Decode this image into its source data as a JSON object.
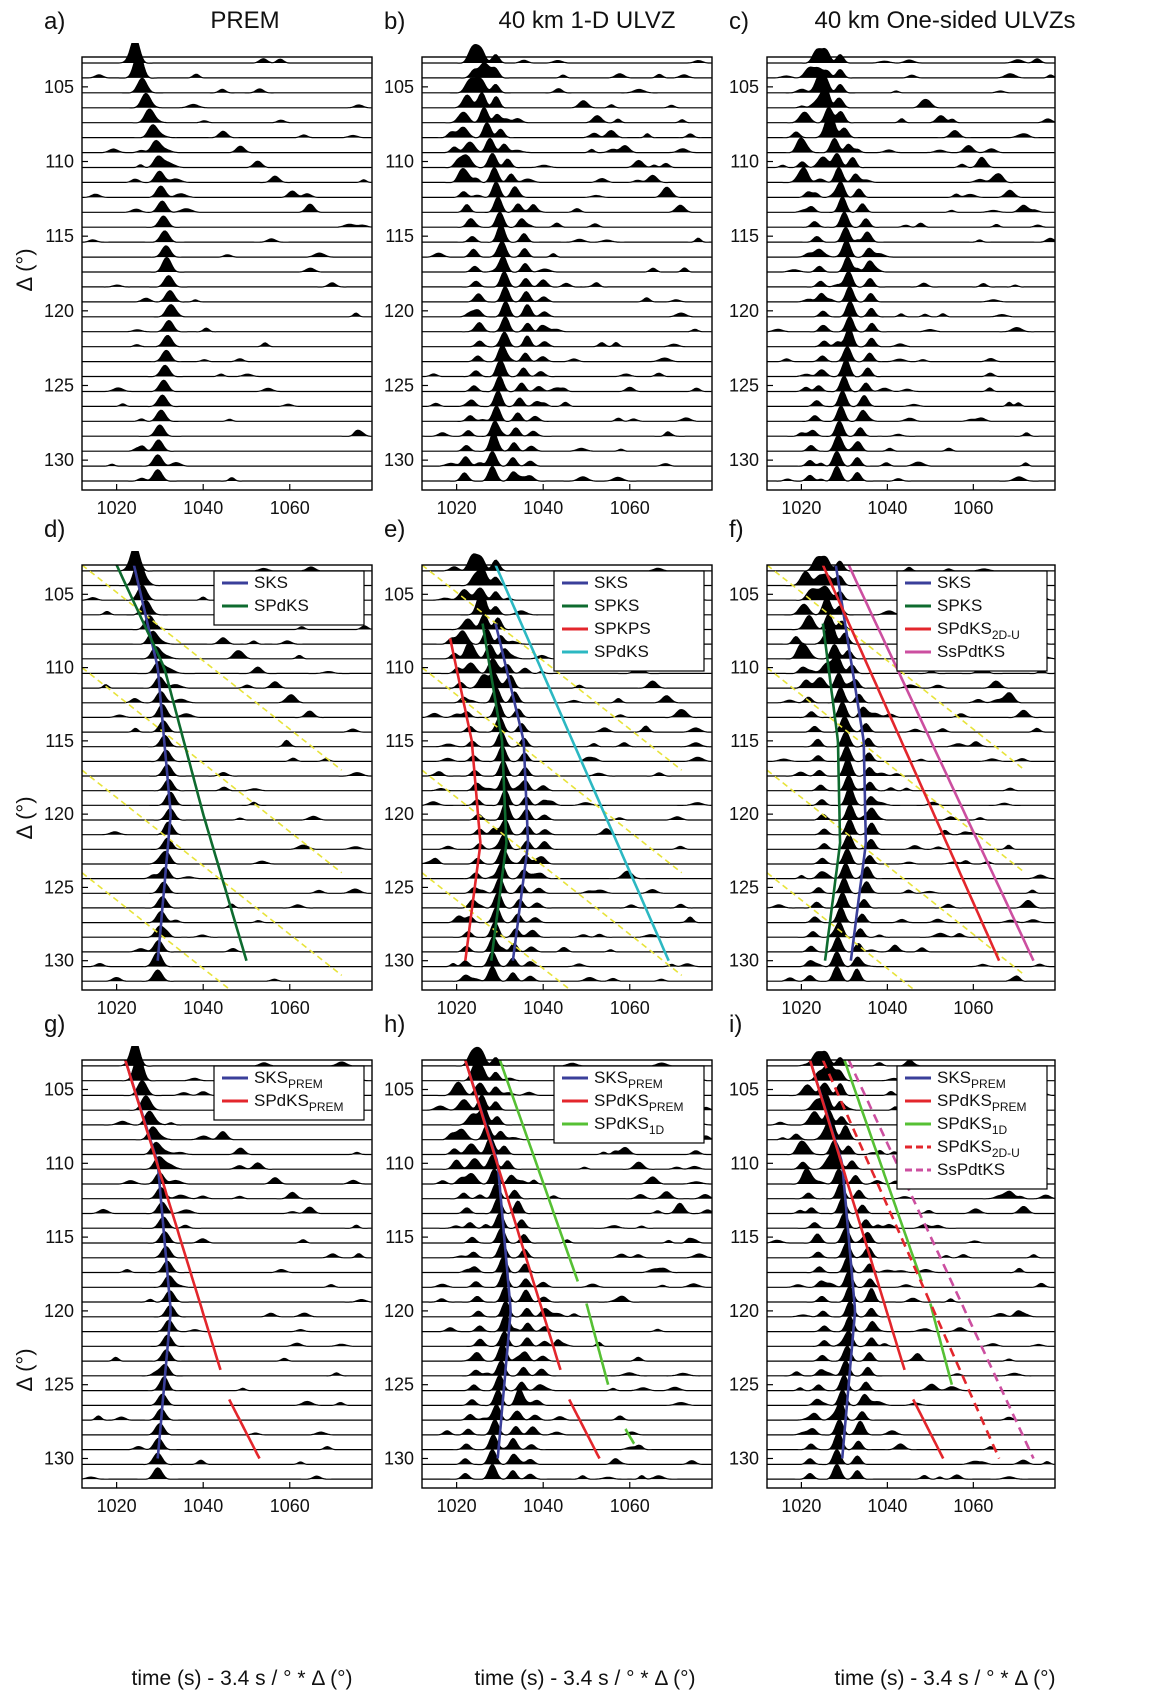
{
  "figure": {
    "column_titles": [
      "PREM",
      "40 km 1-D ULVZ",
      "40 km One-sided ULVZs"
    ],
    "ylabel": "Δ (°)",
    "xlabel": "time (s) - 3.4 s / ° * Δ (°)",
    "colors": {
      "SKS": "#3a3f9a",
      "SPdKS": "#0e6b2f",
      "SPKS": "#0e6b2f",
      "SPKPS": "#e3262c",
      "SPdKS_cyan": "#2cb8c2",
      "SPdKS_2DU": "#e3262c",
      "SsPdtKS": "#cc4fa0",
      "SKS_PREM": "#3a3f9a",
      "SPdKS_PREM": "#e3262c",
      "SPdKS_1D": "#56c034",
      "guide_dashed": "#e7e33a"
    }
  },
  "chart_data": [
    {
      "panel": "a)",
      "type": "line",
      "title": "PREM",
      "xlim": [
        1012,
        1079
      ],
      "ylim": [
        103,
        132
      ],
      "xticks": [
        1020,
        1040,
        1060
      ],
      "yticks": [
        105,
        110,
        115,
        120,
        125,
        130
      ],
      "legend": []
    },
    {
      "panel": "b)",
      "type": "line",
      "title": "40 km 1-D ULVZ",
      "xlim": [
        1012,
        1079
      ],
      "ylim": [
        103,
        132
      ],
      "xticks": [
        1020,
        1040,
        1060
      ],
      "yticks": [
        105,
        110,
        115,
        120,
        125,
        130
      ],
      "legend": []
    },
    {
      "panel": "c)",
      "type": "line",
      "title": "40 km One-sided ULVZs",
      "xlim": [
        1012,
        1079
      ],
      "ylim": [
        103,
        132
      ],
      "xticks": [
        1020,
        1040,
        1060
      ],
      "yticks": [
        105,
        110,
        115,
        120,
        125,
        130
      ],
      "legend": []
    },
    {
      "panel": "d)",
      "type": "line",
      "xlim": [
        1012,
        1079
      ],
      "ylim": [
        103,
        132
      ],
      "xticks": [
        1020,
        1040,
        1060
      ],
      "yticks": [
        105,
        110,
        115,
        120,
        125,
        130
      ],
      "legend": [
        {
          "label": "SKS",
          "sub": "",
          "color": "#3a3f9a",
          "dash": false
        },
        {
          "label": "SPdKS",
          "sub": "",
          "color": "#0e6b2f",
          "dash": false
        }
      ]
    },
    {
      "panel": "e)",
      "type": "line",
      "xlim": [
        1012,
        1079
      ],
      "ylim": [
        103,
        132
      ],
      "xticks": [
        1020,
        1040,
        1060
      ],
      "yticks": [
        105,
        110,
        115,
        120,
        125,
        130
      ],
      "legend": [
        {
          "label": "SKS",
          "sub": "",
          "color": "#3a3f9a",
          "dash": false
        },
        {
          "label": "SPKS",
          "sub": "",
          "color": "#0e6b2f",
          "dash": false
        },
        {
          "label": "SPKPS",
          "sub": "",
          "color": "#e3262c",
          "dash": false
        },
        {
          "label": "SPdKS",
          "sub": "",
          "color": "#2cb8c2",
          "dash": false
        }
      ]
    },
    {
      "panel": "f)",
      "type": "line",
      "xlim": [
        1012,
        1079
      ],
      "ylim": [
        103,
        132
      ],
      "xticks": [
        1020,
        1040,
        1060
      ],
      "yticks": [
        105,
        110,
        115,
        120,
        125,
        130
      ],
      "legend": [
        {
          "label": "SKS",
          "sub": "",
          "color": "#3a3f9a",
          "dash": false
        },
        {
          "label": "SPKS",
          "sub": "",
          "color": "#0e6b2f",
          "dash": false
        },
        {
          "label": "SPdKS",
          "sub": "2D-U",
          "color": "#e3262c",
          "dash": false
        },
        {
          "label": "SsPdtKS",
          "sub": "",
          "color": "#cc4fa0",
          "dash": false
        }
      ]
    },
    {
      "panel": "g)",
      "type": "line",
      "xlim": [
        1012,
        1079
      ],
      "ylim": [
        103,
        132
      ],
      "xticks": [
        1020,
        1040,
        1060
      ],
      "yticks": [
        105,
        110,
        115,
        120,
        125,
        130
      ],
      "legend": [
        {
          "label": "SKS",
          "sub": "PREM",
          "color": "#3a3f9a",
          "dash": false
        },
        {
          "label": "SPdKS",
          "sub": "PREM",
          "color": "#e3262c",
          "dash": false
        }
      ]
    },
    {
      "panel": "h)",
      "type": "line",
      "xlim": [
        1012,
        1079
      ],
      "ylim": [
        103,
        132
      ],
      "xticks": [
        1020,
        1040,
        1060
      ],
      "yticks": [
        105,
        110,
        115,
        120,
        125,
        130
      ],
      "legend": [
        {
          "label": "SKS",
          "sub": "PREM",
          "color": "#3a3f9a",
          "dash": false
        },
        {
          "label": "SPdKS",
          "sub": "PREM",
          "color": "#e3262c",
          "dash": false
        },
        {
          "label": "SPdKS",
          "sub": "1D",
          "color": "#56c034",
          "dash": false
        }
      ]
    },
    {
      "panel": "i)",
      "type": "line",
      "xlim": [
        1012,
        1079
      ],
      "ylim": [
        103,
        132
      ],
      "xticks": [
        1020,
        1040,
        1060
      ],
      "yticks": [
        105,
        110,
        115,
        120,
        125,
        130
      ],
      "legend": [
        {
          "label": "SKS",
          "sub": "PREM",
          "color": "#3a3f9a",
          "dash": false
        },
        {
          "label": "SPdKS",
          "sub": "PREM",
          "color": "#e3262c",
          "dash": false
        },
        {
          "label": "SPdKS",
          "sub": "1D",
          "color": "#56c034",
          "dash": false
        },
        {
          "label": "SPdKS",
          "sub": "2D-U",
          "color": "#e3262c",
          "dash": true
        },
        {
          "label": "SsPdtKS",
          "sub": "",
          "color": "#cc4fa0",
          "dash": true
        }
      ]
    }
  ],
  "phase_curves": {
    "SKS_main": {
      "distance": [
        103,
        110,
        120,
        130
      ],
      "time": [
        1024,
        1029.5,
        1032.5,
        1029.5
      ]
    },
    "SPdKS_d": {
      "distance": [
        103,
        110,
        120,
        130
      ],
      "time": [
        1020,
        1031,
        1040,
        1050
      ]
    },
    "SPKS": {
      "distance": [
        107,
        115,
        122,
        130
      ],
      "time": [
        1026,
        1030.5,
        1031.5,
        1028
      ]
    },
    "SKS_e": {
      "distance": [
        107,
        115,
        122,
        130
      ],
      "time": [
        1029,
        1035.5,
        1036.5,
        1033
      ]
    },
    "SPKPS": {
      "distance": [
        108,
        115,
        122,
        130
      ],
      "time": [
        1018.5,
        1023.5,
        1025.5,
        1022
      ]
    },
    "SPdKS_e": {
      "distance": [
        103,
        130
      ],
      "time": [
        1029,
        1069
      ]
    },
    "SPKS_f": {
      "distance": [
        107,
        115,
        122,
        130
      ],
      "time": [
        1025,
        1028.5,
        1029,
        1025.5
      ]
    },
    "SKS_f": {
      "distance": [
        103,
        115,
        122,
        130
      ],
      "time": [
        1028,
        1034.5,
        1035,
        1031.5
      ]
    },
    "SPdKS_2DU": {
      "distance": [
        103,
        130
      ],
      "time": [
        1025,
        1066
      ]
    },
    "SsPdtKS_f": {
      "distance": [
        103,
        130
      ],
      "time": [
        1031,
        1074
      ]
    },
    "SKS_PREM_g": {
      "distance": [
        103,
        110,
        120,
        130
      ],
      "time": [
        1022,
        1029.5,
        1032.5,
        1029.5
      ]
    },
    "SPdKS_PREM_g1": {
      "distance": [
        103,
        124
      ],
      "time": [
        1022,
        1044
      ]
    },
    "SPdKS_PREM_g2": {
      "distance": [
        126,
        130
      ],
      "time": [
        1046,
        1053
      ]
    },
    "SPdKS_1D_h1": {
      "distance": [
        103,
        118
      ],
      "time": [
        1030,
        1048
      ]
    },
    "SPdKS_1D_h2": {
      "distance": [
        119.5,
        125
      ],
      "time": [
        1050,
        1055
      ]
    },
    "SPdKS_1D_h3": {
      "distance": [
        128,
        129
      ],
      "time": [
        1059,
        1061
      ]
    }
  }
}
